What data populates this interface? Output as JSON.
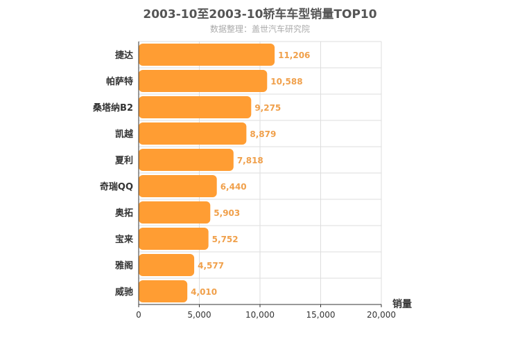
{
  "colors": {
    "bar": "#ff9d33",
    "label": "#f0a04b",
    "grid": "#dddddd",
    "axis": "#333333",
    "title": "#555555",
    "subtitle": "#aaaaaa"
  },
  "chart_data": {
    "type": "bar",
    "orientation": "horizontal",
    "title": "2003-10至2003-10轿车车型销量TOP10",
    "subtitle": "数据整理：盖世汽车研究院",
    "xlabel": "销量",
    "ylabel": "",
    "xlim": [
      0,
      20000
    ],
    "xticks": [
      "0",
      "5,000",
      "10,000",
      "15,000",
      "20,000"
    ],
    "categories": [
      "捷达",
      "帕萨特",
      "桑塔纳B2",
      "凯越",
      "夏利",
      "奇瑞QQ",
      "奥拓",
      "宝来",
      "雅阁",
      "威驰"
    ],
    "values": [
      11206,
      10588,
      9275,
      8879,
      7818,
      6440,
      5903,
      5752,
      4577,
      4010
    ],
    "data_labels": [
      "11,206",
      "10,588",
      "9,275",
      "8,879",
      "7,818",
      "6,440",
      "5,903",
      "5,752",
      "4,577",
      "4,010"
    ],
    "grid": true,
    "legend": "none"
  }
}
